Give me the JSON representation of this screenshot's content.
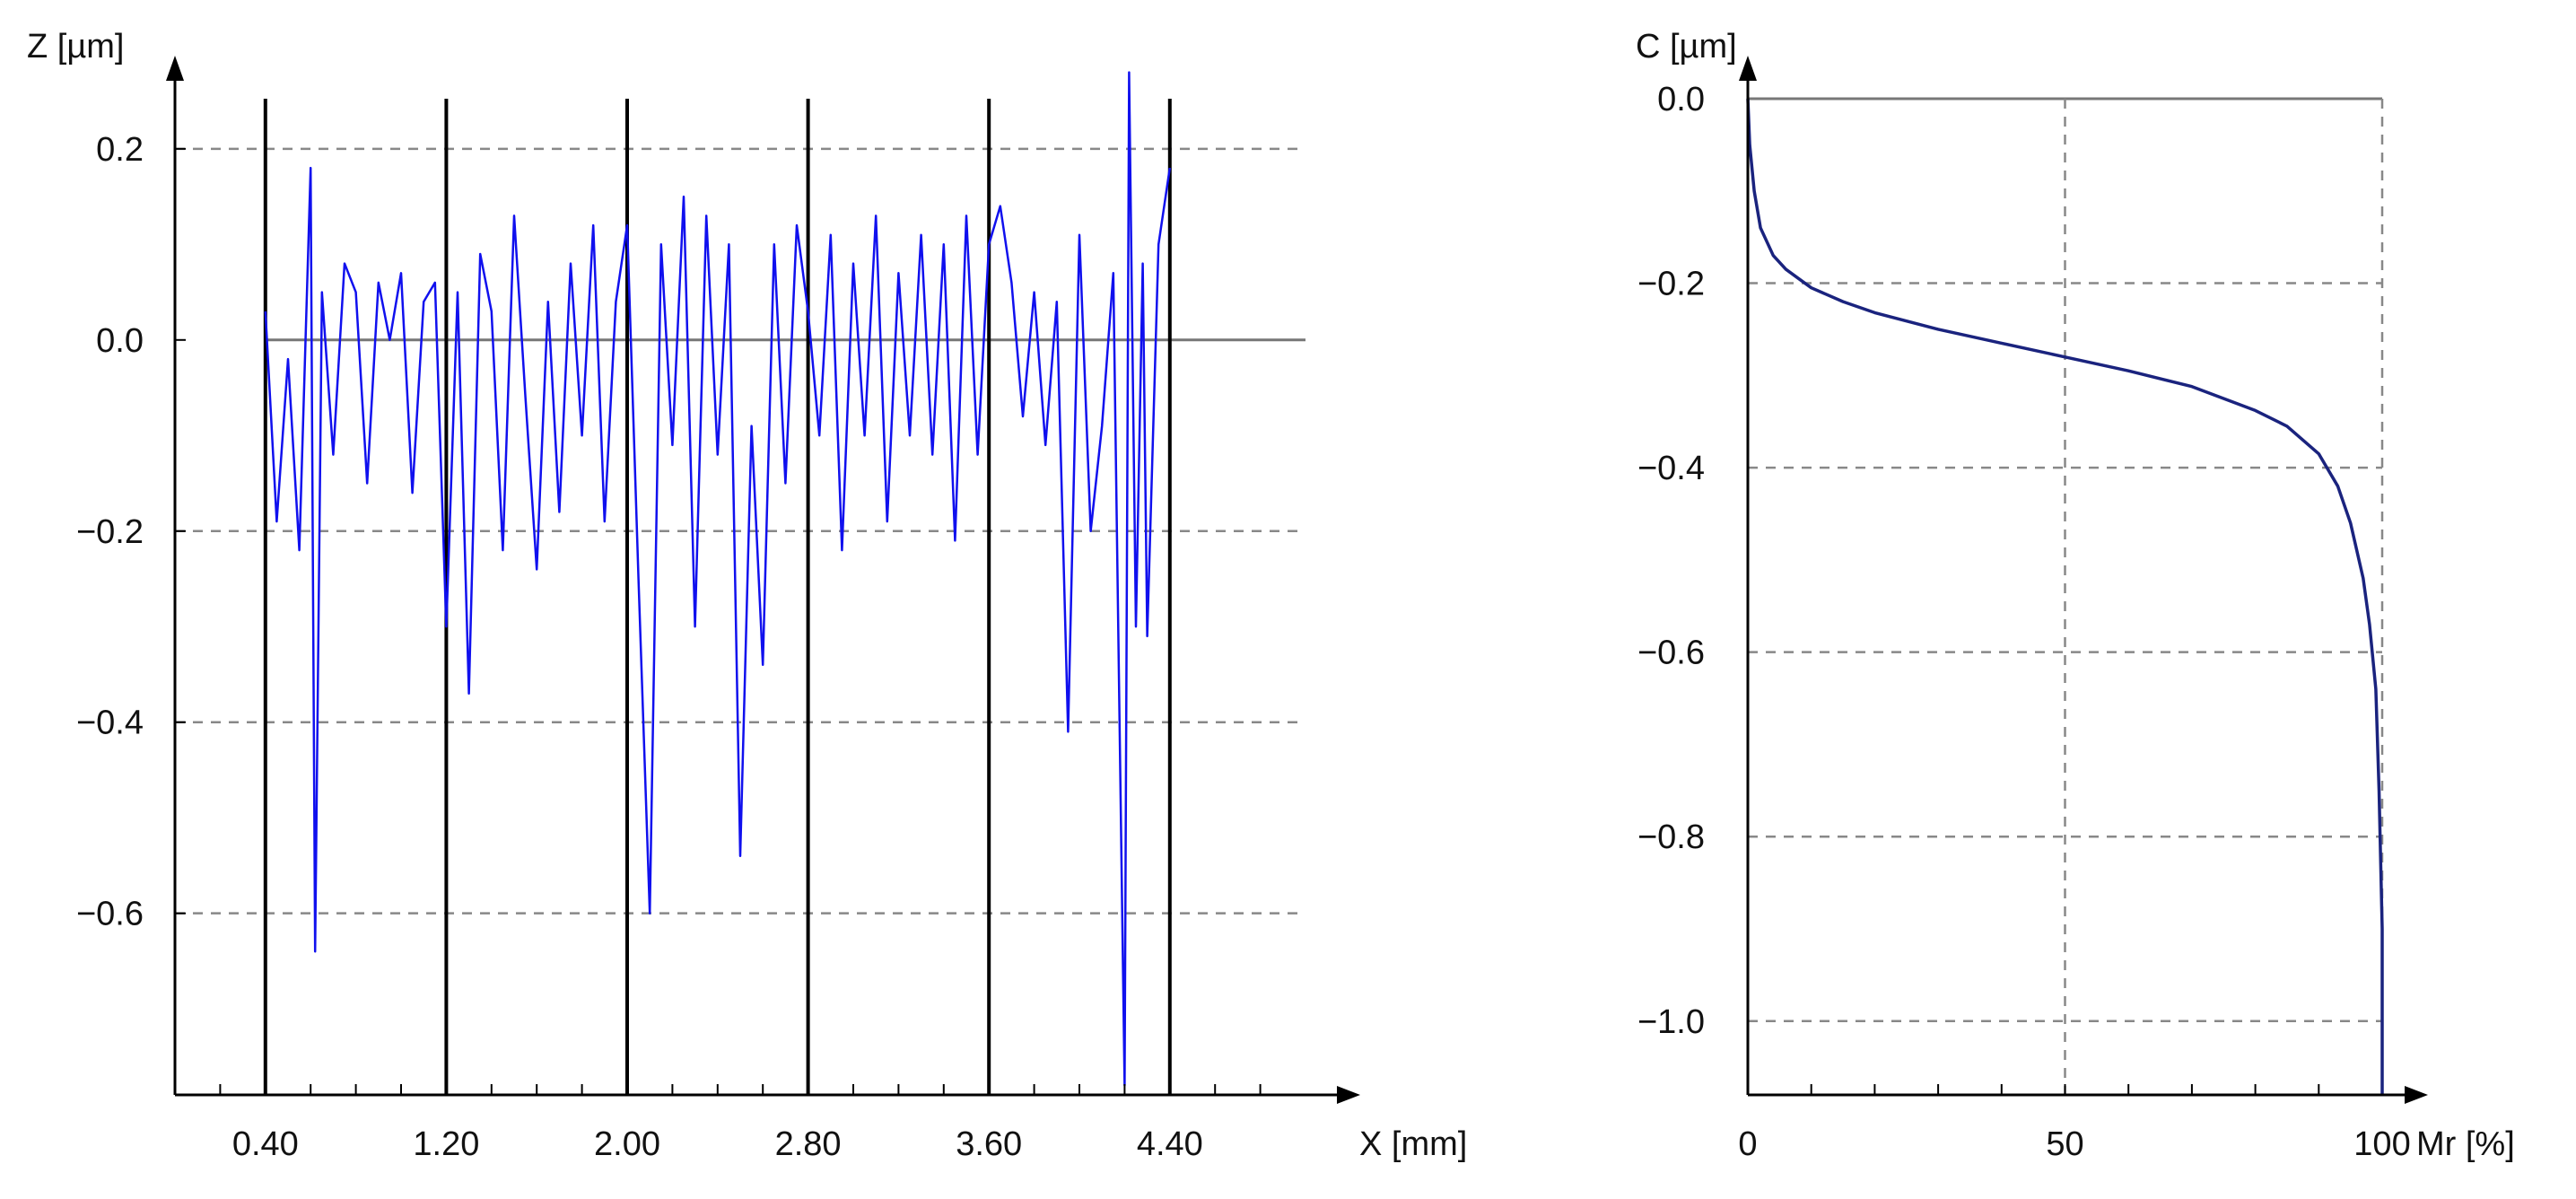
{
  "chart_data": [
    {
      "type": "line",
      "xlabel": "X [mm]",
      "ylabel": "Z [µm]",
      "xlim": [
        0.0,
        5.0
      ],
      "ylim": [
        -0.79,
        0.29
      ],
      "x_ticks": [
        "0.40",
        "1.20",
        "2.00",
        "2.80",
        "3.60",
        "4.40"
      ],
      "x_tick_values": [
        0.4,
        1.2,
        2.0,
        2.8,
        3.6,
        4.4
      ],
      "y_ticks": [
        "0.2",
        "0.0",
        "-0.2",
        "-0.4",
        "-0.6"
      ],
      "y_tick_values": [
        0.2,
        0.0,
        -0.2,
        -0.4,
        -0.6
      ],
      "vertical_lines_x": [
        0.4,
        1.2,
        2.0,
        2.8,
        3.6,
        4.4
      ],
      "grid": "horizontal dashed",
      "line_color": "#1010ee",
      "series": [
        {
          "x": [
            0.4,
            0.45,
            0.5,
            0.55,
            0.6,
            0.62,
            0.65,
            0.7,
            0.75,
            0.8,
            0.85,
            0.9,
            0.95,
            1.0,
            1.05,
            1.1,
            1.15,
            1.2,
            1.25,
            1.3,
            1.35,
            1.4,
            1.45,
            1.5,
            1.55,
            1.6,
            1.65,
            1.7,
            1.75,
            1.8,
            1.85,
            1.9,
            1.95,
            2.0,
            2.05,
            2.1,
            2.15,
            2.2,
            2.25,
            2.3,
            2.35,
            2.4,
            2.45,
            2.5,
            2.55,
            2.6,
            2.65,
            2.7,
            2.75,
            2.8,
            2.85,
            2.9,
            2.95,
            3.0,
            3.05,
            3.1,
            3.15,
            3.2,
            3.25,
            3.3,
            3.35,
            3.4,
            3.45,
            3.5,
            3.55,
            3.6,
            3.65,
            3.7,
            3.75,
            3.8,
            3.85,
            3.9,
            3.95,
            4.0,
            4.05,
            4.1,
            4.15,
            4.2,
            4.22,
            4.25,
            4.28,
            4.3,
            4.35,
            4.4
          ],
          "values": [
            0.03,
            -0.19,
            -0.02,
            -0.22,
            0.18,
            -0.64,
            0.05,
            -0.12,
            0.08,
            0.05,
            -0.15,
            0.06,
            0.0,
            0.07,
            -0.16,
            0.04,
            0.06,
            -0.3,
            0.05,
            -0.37,
            0.09,
            0.03,
            -0.22,
            0.13,
            -0.06,
            -0.24,
            0.04,
            -0.18,
            0.08,
            -0.1,
            0.12,
            -0.19,
            0.04,
            0.12,
            -0.25,
            -0.6,
            0.1,
            -0.11,
            0.15,
            -0.3,
            0.13,
            -0.12,
            0.1,
            -0.54,
            -0.09,
            -0.34,
            0.1,
            -0.15,
            0.12,
            0.03,
            -0.1,
            0.11,
            -0.22,
            0.08,
            -0.1,
            0.13,
            -0.19,
            0.07,
            -0.1,
            0.11,
            -0.12,
            0.1,
            -0.21,
            0.13,
            -0.12,
            0.1,
            0.14,
            0.06,
            -0.08,
            0.05,
            -0.11,
            0.04,
            -0.41,
            0.11,
            -0.2,
            -0.09,
            0.07,
            -0.78,
            0.28,
            -0.3,
            0.08,
            -0.31,
            0.1,
            0.18
          ]
        }
      ]
    },
    {
      "type": "line",
      "xlabel": "Mr [%]",
      "ylabel": "C [µm]",
      "xlim": [
        0,
        100
      ],
      "ylim": [
        -1.08,
        0.0
      ],
      "x_ticks": [
        "0",
        "50",
        "100"
      ],
      "x_tick_values": [
        0,
        50,
        100
      ],
      "y_ticks": [
        "0.0",
        "-0.2",
        "-0.4",
        "-0.6",
        "-0.8",
        "-1.0"
      ],
      "y_tick_values": [
        0.0,
        -0.2,
        -0.4,
        -0.6,
        -0.8,
        -1.0
      ],
      "grid": "dashed",
      "line_color": "#1a237e",
      "series": [
        {
          "x": [
            0,
            0.3,
            1,
            2,
            4,
            6,
            8,
            10,
            15,
            20,
            30,
            40,
            50,
            60,
            70,
            80,
            85,
            90,
            93,
            95,
            97,
            98,
            99,
            99.5,
            100,
            100
          ],
          "values": [
            0.0,
            -0.05,
            -0.1,
            -0.14,
            -0.17,
            -0.185,
            -0.195,
            -0.205,
            -0.22,
            -0.232,
            -0.25,
            -0.265,
            -0.28,
            -0.295,
            -0.312,
            -0.338,
            -0.355,
            -0.385,
            -0.42,
            -0.46,
            -0.52,
            -0.57,
            -0.64,
            -0.75,
            -0.9,
            -1.08
          ]
        }
      ]
    }
  ]
}
